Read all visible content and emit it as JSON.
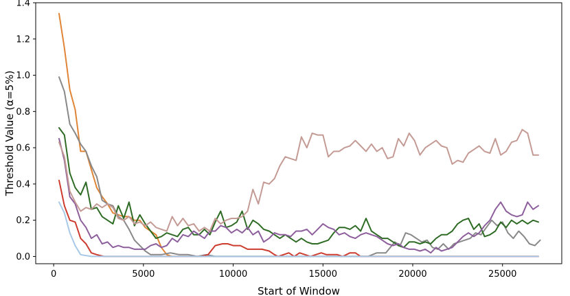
{
  "chart_data": {
    "type": "line",
    "title": "",
    "xlabel": "Start of Window",
    "ylabel": "Threshold Value (α=5%)",
    "xlim": [
      -1000,
      28300
    ],
    "ylim": [
      -0.04,
      1.4
    ],
    "xticks": [
      0,
      5000,
      10000,
      15000,
      20000,
      25000
    ],
    "xtick_labels": [
      "0",
      "5000",
      "10000",
      "15000",
      "20000",
      "25000"
    ],
    "yticks": [
      0.0,
      0.2,
      0.4,
      0.6,
      0.8,
      1.0,
      1.2,
      1.4
    ],
    "ytick_labels": [
      "0.0",
      "0.2",
      "0.4",
      "0.6",
      "0.8",
      "1.0",
      "1.2",
      "1.4"
    ],
    "grid": false,
    "legend": "none",
    "series": [
      {
        "color": "#e08436",
        "x": [
          300,
          600,
          900,
          1200,
          1500,
          1800,
          2100,
          2400,
          2700,
          3000,
          3300,
          3600,
          3900,
          4200,
          4500,
          4800,
          5100,
          5400,
          5700,
          6000,
          6300,
          6600,
          6900,
          7500,
          8500,
          10000,
          12000,
          15000,
          20000,
          25000,
          27000
        ],
        "y": [
          1.34,
          1.15,
          0.92,
          0.81,
          0.58,
          0.58,
          0.48,
          0.38,
          0.33,
          0.29,
          0.24,
          0.23,
          0.22,
          0.22,
          0.2,
          0.2,
          0.16,
          0.14,
          0.12,
          0.05,
          0.01,
          0.0,
          0.0,
          0.0,
          0.0,
          0.0,
          0.0,
          0.0,
          0.0,
          0.0,
          0.0
        ]
      },
      {
        "color": "#888888",
        "x": [
          300,
          600,
          900,
          1200,
          1500,
          1800,
          2100,
          2400,
          2700,
          3000,
          3300,
          3600,
          3900,
          4200,
          4500,
          4800,
          5100,
          5400,
          5700,
          6000,
          6500,
          7000,
          7500,
          8000,
          8500,
          9000,
          10000,
          12000,
          14000,
          16000,
          17500,
          18000,
          18500,
          19000,
          19300,
          19600,
          19900,
          20200,
          20500,
          20800,
          21100,
          21400,
          21700,
          22000,
          22300,
          22600,
          22900,
          23200,
          23500,
          23800,
          24100,
          24400,
          24700,
          25000,
          25300,
          25600,
          25900,
          26200,
          26500,
          26800,
          27100
        ],
        "y": [
          0.99,
          0.91,
          0.73,
          0.68,
          0.62,
          0.58,
          0.5,
          0.44,
          0.31,
          0.29,
          0.28,
          0.22,
          0.2,
          0.15,
          0.09,
          0.06,
          0.03,
          0.01,
          0.01,
          0.01,
          0.02,
          0.01,
          0.01,
          0.0,
          0.01,
          0.0,
          0.0,
          0.0,
          0.0,
          0.0,
          0.0,
          0.02,
          0.02,
          0.08,
          0.06,
          0.13,
          0.12,
          0.1,
          0.08,
          0.09,
          0.05,
          0.04,
          0.07,
          0.04,
          0.07,
          0.08,
          0.09,
          0.1,
          0.13,
          0.12,
          0.16,
          0.2,
          0.17,
          0.19,
          0.13,
          0.1,
          0.14,
          0.11,
          0.07,
          0.06,
          0.09
        ]
      },
      {
        "color": "#2e6b24",
        "x": [
          300,
          600,
          900,
          1200,
          1500,
          1800,
          2100,
          2400,
          2700,
          3000,
          3300,
          3600,
          3900,
          4200,
          4500,
          4800,
          5100,
          5400,
          5700,
          6000,
          6300,
          6600,
          6900,
          7200,
          7500,
          7800,
          8100,
          8400,
          8700,
          9000,
          9300,
          9600,
          9900,
          10200,
          10500,
          10800,
          11100,
          11400,
          11700,
          12000,
          12300,
          12600,
          12900,
          13200,
          13500,
          13800,
          14100,
          14400,
          14700,
          15000,
          15300,
          15600,
          15900,
          16200,
          16500,
          16800,
          17100,
          17400,
          17700,
          18000,
          18300,
          18600,
          18900,
          19200,
          19500,
          19800,
          20100,
          20400,
          20700,
          21000,
          21300,
          21600,
          21900,
          22200,
          22500,
          22800,
          23100,
          23400,
          23700,
          24000,
          24300,
          24600,
          24900,
          25200,
          25500,
          25800,
          26100,
          26400,
          26700,
          27000
        ],
        "y": [
          0.71,
          0.67,
          0.46,
          0.38,
          0.34,
          0.41,
          0.26,
          0.27,
          0.22,
          0.2,
          0.18,
          0.28,
          0.21,
          0.3,
          0.17,
          0.23,
          0.18,
          0.14,
          0.1,
          0.11,
          0.13,
          0.12,
          0.11,
          0.15,
          0.16,
          0.12,
          0.12,
          0.15,
          0.12,
          0.19,
          0.25,
          0.16,
          0.17,
          0.19,
          0.25,
          0.15,
          0.2,
          0.18,
          0.15,
          0.14,
          0.12,
          0.1,
          0.12,
          0.1,
          0.08,
          0.1,
          0.08,
          0.07,
          0.07,
          0.08,
          0.09,
          0.13,
          0.16,
          0.16,
          0.15,
          0.17,
          0.14,
          0.21,
          0.14,
          0.12,
          0.1,
          0.1,
          0.08,
          0.06,
          0.05,
          0.08,
          0.08,
          0.07,
          0.08,
          0.07,
          0.1,
          0.12,
          0.12,
          0.14,
          0.18,
          0.2,
          0.21,
          0.15,
          0.18,
          0.11,
          0.12,
          0.14,
          0.19,
          0.16,
          0.2,
          0.18,
          0.2,
          0.18,
          0.2,
          0.19
        ]
      },
      {
        "color": "#8d5e9c",
        "x": [
          300,
          600,
          900,
          1200,
          1500,
          1800,
          2100,
          2400,
          2700,
          3000,
          3300,
          3600,
          3900,
          4200,
          4500,
          4800,
          5100,
          5400,
          5700,
          6000,
          6300,
          6600,
          6900,
          7200,
          7500,
          7800,
          8100,
          8400,
          8700,
          9000,
          9300,
          9600,
          9900,
          10200,
          10500,
          10800,
          11100,
          11400,
          11700,
          12000,
          12300,
          12600,
          12900,
          13200,
          13500,
          13800,
          14100,
          14400,
          14700,
          15000,
          15300,
          15600,
          15900,
          16200,
          16500,
          16800,
          17100,
          17400,
          17700,
          18000,
          18300,
          18600,
          18900,
          19200,
          19500,
          19800,
          20100,
          20400,
          20700,
          21000,
          21300,
          21600,
          21900,
          22200,
          22500,
          22800,
          23100,
          23400,
          23700,
          24000,
          24300,
          24600,
          24900,
          25200,
          25500,
          25800,
          26100,
          26400,
          26700,
          27000
        ],
        "y": [
          0.65,
          0.53,
          0.33,
          0.29,
          0.2,
          0.16,
          0.1,
          0.12,
          0.07,
          0.08,
          0.05,
          0.06,
          0.05,
          0.05,
          0.04,
          0.04,
          0.04,
          0.06,
          0.07,
          0.05,
          0.06,
          0.1,
          0.08,
          0.12,
          0.11,
          0.14,
          0.12,
          0.1,
          0.14,
          0.14,
          0.17,
          0.16,
          0.13,
          0.15,
          0.13,
          0.16,
          0.12,
          0.14,
          0.08,
          0.1,
          0.13,
          0.12,
          0.12,
          0.11,
          0.14,
          0.14,
          0.15,
          0.12,
          0.15,
          0.18,
          0.16,
          0.15,
          0.12,
          0.13,
          0.11,
          0.1,
          0.12,
          0.13,
          0.12,
          0.11,
          0.09,
          0.07,
          0.06,
          0.07,
          0.05,
          0.04,
          0.04,
          0.03,
          0.04,
          0.02,
          0.05,
          0.03,
          0.04,
          0.05,
          0.08,
          0.11,
          0.13,
          0.11,
          0.13,
          0.17,
          0.2,
          0.26,
          0.3,
          0.25,
          0.23,
          0.22,
          0.23,
          0.3,
          0.26,
          0.28
        ]
      },
      {
        "color": "#c49a94",
        "x": [
          300,
          600,
          900,
          1200,
          1500,
          1800,
          2100,
          2400,
          2700,
          3000,
          3300,
          3600,
          3900,
          4200,
          4500,
          4800,
          5100,
          5400,
          5700,
          6000,
          6300,
          6600,
          6900,
          7200,
          7500,
          7800,
          8100,
          8400,
          8700,
          9000,
          9300,
          9600,
          9900,
          10200,
          10500,
          10800,
          11100,
          11400,
          11700,
          12000,
          12300,
          12600,
          12900,
          13200,
          13500,
          13800,
          14100,
          14400,
          14700,
          15000,
          15300,
          15600,
          15900,
          16200,
          16500,
          16800,
          17100,
          17400,
          17700,
          18000,
          18300,
          18600,
          18900,
          19200,
          19500,
          19800,
          20100,
          20400,
          20700,
          21000,
          21300,
          21600,
          21900,
          22200,
          22500,
          22800,
          23100,
          23400,
          23700,
          24000,
          24300,
          24600,
          24900,
          25200,
          25500,
          25800,
          26100,
          26400,
          26700,
          27000
        ],
        "y": [
          0.63,
          0.55,
          0.36,
          0.3,
          0.25,
          0.27,
          0.26,
          0.29,
          0.27,
          0.29,
          0.27,
          0.21,
          0.2,
          0.22,
          0.18,
          0.19,
          0.17,
          0.19,
          0.16,
          0.15,
          0.14,
          0.22,
          0.17,
          0.21,
          0.17,
          0.18,
          0.14,
          0.16,
          0.14,
          0.21,
          0.18,
          0.2,
          0.21,
          0.21,
          0.22,
          0.25,
          0.37,
          0.29,
          0.41,
          0.4,
          0.43,
          0.5,
          0.55,
          0.54,
          0.53,
          0.66,
          0.6,
          0.68,
          0.67,
          0.67,
          0.55,
          0.58,
          0.58,
          0.6,
          0.61,
          0.64,
          0.61,
          0.58,
          0.62,
          0.58,
          0.6,
          0.54,
          0.55,
          0.65,
          0.61,
          0.68,
          0.64,
          0.56,
          0.6,
          0.62,
          0.64,
          0.61,
          0.6,
          0.51,
          0.53,
          0.52,
          0.57,
          0.59,
          0.61,
          0.58,
          0.57,
          0.65,
          0.56,
          0.58,
          0.63,
          0.64,
          0.7,
          0.68,
          0.56,
          0.56
        ]
      },
      {
        "color": "#cc3b2e",
        "x": [
          300,
          600,
          900,
          1200,
          1500,
          1800,
          2100,
          2400,
          2800,
          3500,
          5000,
          7000,
          8200,
          8600,
          9000,
          9400,
          9700,
          10000,
          10400,
          10800,
          11200,
          11600,
          12000,
          12300,
          12500,
          12800,
          13100,
          13400,
          13700,
          14000,
          14300,
          14600,
          14900,
          15200,
          15500,
          15800,
          16100,
          16500,
          16800,
          17100,
          17400,
          17700,
          18000,
          20000,
          22000,
          25000,
          27000
        ],
        "y": [
          0.42,
          0.28,
          0.2,
          0.19,
          0.1,
          0.07,
          0.02,
          0.01,
          0.0,
          0.0,
          0.0,
          0.0,
          0.0,
          0.01,
          0.06,
          0.07,
          0.07,
          0.06,
          0.06,
          0.04,
          0.04,
          0.04,
          0.03,
          0.01,
          0.0,
          0.01,
          0.02,
          0.0,
          0.02,
          0.01,
          0.0,
          0.01,
          0.02,
          0.01,
          0.01,
          0.01,
          0.0,
          0.02,
          0.02,
          0.0,
          0.0,
          0.0,
          0.0,
          0.0,
          0.0,
          0.0,
          0.0
        ]
      },
      {
        "color": "#a8c8e8",
        "x": [
          300,
          600,
          900,
          1200,
          1500,
          1800,
          2100,
          2500,
          3000,
          5000,
          10000,
          15000,
          20000,
          25000,
          27000
        ],
        "y": [
          0.3,
          0.24,
          0.13,
          0.06,
          0.01,
          0.005,
          0.0,
          0.0,
          0.0,
          0.0,
          0.0,
          0.0,
          0.0,
          0.0,
          0.0
        ]
      }
    ]
  }
}
